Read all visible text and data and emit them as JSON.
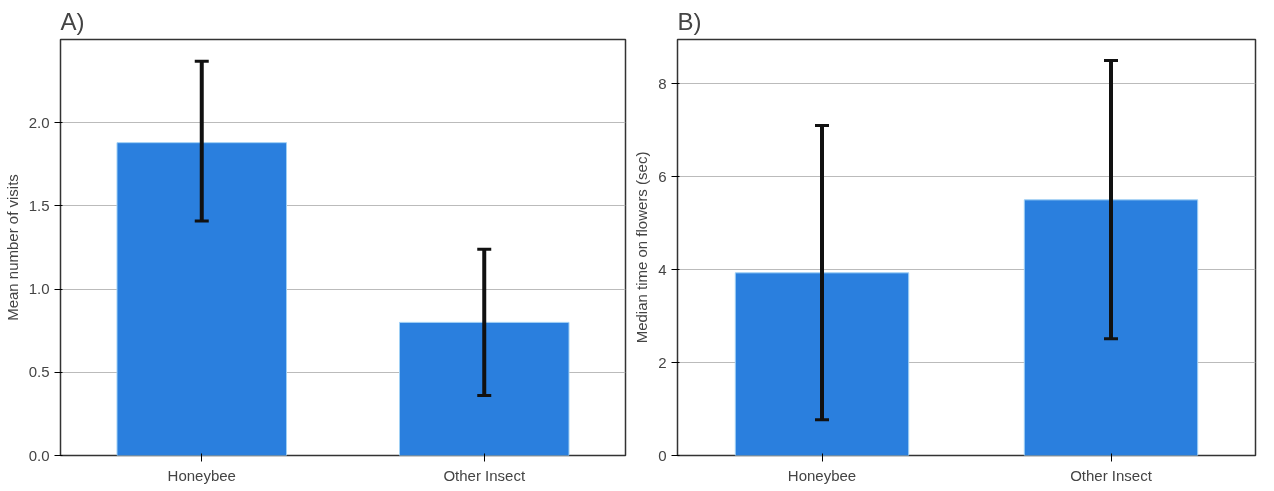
{
  "chart_data": [
    {
      "type": "bar",
      "title": "A)",
      "ylabel": "Mean number of visits",
      "categories": [
        "Honeybee",
        "Other Insect"
      ],
      "series": [
        {
          "color": "#2a7fde",
          "values": [
            1.88,
            0.8
          ],
          "errors": [
            [
              1.41,
              2.37
            ],
            [
              0.36,
              1.24
            ]
          ]
        }
      ],
      "ylim": [
        0,
        2.5
      ],
      "yticks": [
        {
          "value": 0,
          "label": "0.0"
        },
        0.5,
        {
          "value": 1,
          "label": "1.0"
        },
        1.5,
        {
          "value": 2,
          "label": "2.0"
        }
      ],
      "grid": "y"
    },
    {
      "type": "bar",
      "title": "B)",
      "ylabel": "Median time on flowers (sec)",
      "categories": [
        "Honeybee",
        "Other Insect"
      ],
      "series": [
        {
          "color": "#2a7fde",
          "values": [
            3.93,
            5.5
          ],
          "errors": [
            [
              0.77,
              7.1
            ],
            [
              2.51,
              8.5
            ]
          ]
        }
      ],
      "ylim": [
        0,
        8.95
      ],
      "yticks": [
        0,
        2,
        4,
        6,
        8
      ],
      "grid": "y"
    }
  ]
}
